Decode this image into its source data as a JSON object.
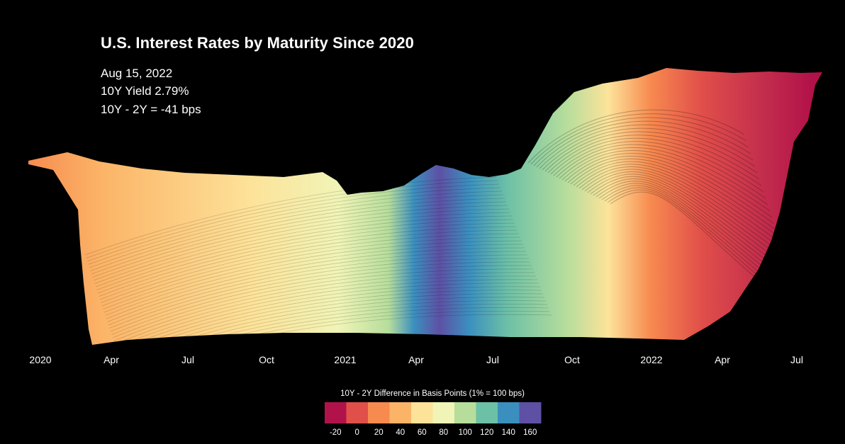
{
  "header": {
    "title": "U.S. Interest Rates by Maturity Since 2020",
    "date": "Aug 15, 2022",
    "yield_line": "10Y Yield 2.79%",
    "spread_line": "10Y - 2Y = -41 bps"
  },
  "legend": {
    "title": "10Y - 2Y Difference in Basis Points (1% = 100 bps)",
    "ticks": [
      "-20",
      "0",
      "20",
      "40",
      "60",
      "80",
      "100",
      "120",
      "140",
      "160"
    ],
    "colors": [
      "#b2124a",
      "#e14f4a",
      "#f78a4f",
      "#fbb467",
      "#fde39a",
      "#f0f4b6",
      "#b6dd9c",
      "#6cc0a6",
      "#3b8fbf",
      "#5e50a4"
    ]
  },
  "chart_data": {
    "type": "area",
    "title": "U.S. Interest Rates by Maturity Since 2020",
    "x_tick_labels": [
      "2020",
      "Apr",
      "Jul",
      "Oct",
      "2021",
      "Apr",
      "Jul",
      "Oct",
      "2022",
      "Apr",
      "Jul"
    ],
    "x_range": [
      "2020-01-01",
      "2022-08-15"
    ],
    "series": [
      {
        "name": "10Y - 2Y spread (bps)",
        "x": [
          "2020-01-01",
          "2020-04-01",
          "2020-07-01",
          "2020-10-01",
          "2021-01-01",
          "2021-04-01",
          "2021-07-01",
          "2021-10-01",
          "2022-01-01",
          "2022-04-01",
          "2022-08-15"
        ],
        "values": [
          20,
          50,
          55,
          62,
          80,
          150,
          115,
          100,
          80,
          10,
          -41
        ]
      },
      {
        "name": "10Y Yield (%)",
        "x": [
          "2020-01-01",
          "2020-04-01",
          "2020-07-01",
          "2020-10-01",
          "2021-01-01",
          "2021-04-01",
          "2021-07-01",
          "2021-10-01",
          "2022-01-01",
          "2022-04-01",
          "2022-08-15"
        ],
        "values": [
          1.88,
          0.62,
          0.66,
          0.69,
          0.93,
          1.74,
          1.31,
          1.58,
          1.63,
          2.93,
          2.79
        ]
      }
    ],
    "grid": false,
    "legend": "bottom-center"
  }
}
